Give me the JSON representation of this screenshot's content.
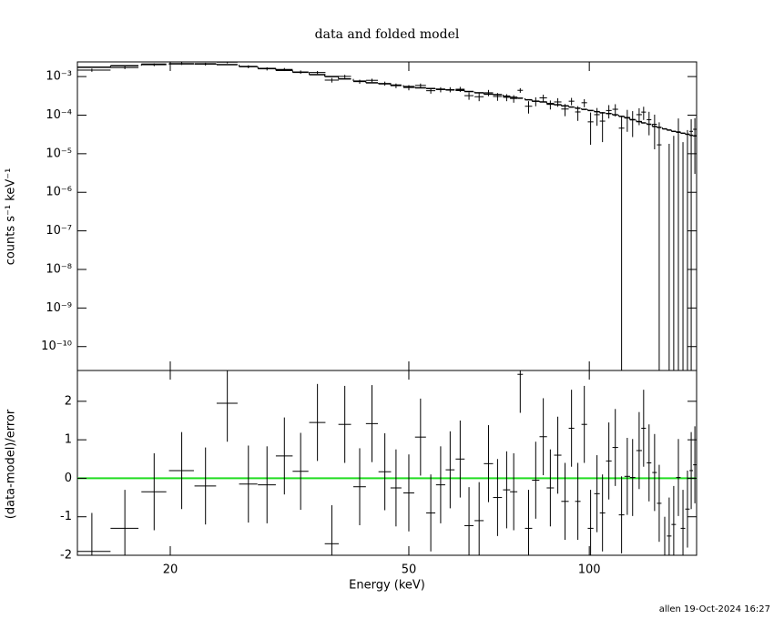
{
  "footer": "allen 19-Oct-2024 16:27",
  "chart_data": [
    {
      "type": "errorbar",
      "title": "data and folded model",
      "ylabel": "counts s⁻¹ keV⁻¹",
      "log_y": true,
      "color": "#000000",
      "model_color": "#000000",
      "ylim": [
        2.4e-11,
        0.0024
      ],
      "yticks": [
        {
          "value": 0.001,
          "label": "10⁻³"
        },
        {
          "value": 0.0001,
          "label": "10⁻⁴"
        },
        {
          "value": 1e-05,
          "label": "10⁻⁵"
        },
        {
          "value": 1e-06,
          "label": "10⁻⁶"
        },
        {
          "value": 1e-07,
          "label": "10⁻⁷"
        },
        {
          "value": 1e-08,
          "label": "10⁻⁸"
        },
        {
          "value": 1e-09,
          "label": "10⁻⁹"
        },
        {
          "value": 1e-10,
          "label": "10⁻¹⁰"
        }
      ],
      "values": [
        0.00147,
        0.00171,
        0.00203,
        0.00217,
        0.0021,
        0.00237,
        0.0018,
        0.00159,
        0.00153,
        0.00131,
        0.00128,
        0.00081,
        0.00101,
        0.00074,
        0.0008,
        0.00066,
        0.00058,
        0.00052,
        0.00059,
        0.00043,
        0.00046,
        0.00046,
        0.00047,
        0.00032,
        0.0003,
        0.00038,
        0.000305,
        0.00029,
        0.00027,
        0.00044,
        0.00017,
        0.00023,
        0.00028,
        0.00019,
        0.00022,
        0.000144,
        0.00023,
        0.000121,
        0.00021,
        6.7e-05,
        0.000103,
        7e-05,
        0.000132,
        0.000142,
        4.6e-05,
        8.7e-05,
        7.7e-05,
        0.000103,
        0.00012,
        7.6e-05,
        5.8e-05,
        1.7e-05,
        -5.2e-05,
        -2.7e-05,
        -1.6e-05,
        3.7e-05,
        -2.5e-05,
        -4e-06,
        3.8e-05,
        4.3e-05
      ],
      "errors": [
        0.00014,
        0.00015,
        0.00017,
        0.00017,
        0.00018,
        0.00017,
        0.00016,
        0.00015,
        0.00014,
        0.00013,
        0.00011,
        0.00011,
        0.0001,
        9e-05,
        8e-05,
        8e-05,
        8e-05,
        8e-05,
        7e-05,
        7e-05,
        7e-05,
        7e-05,
        7e-05,
        7e-05,
        7e-05,
        7e-05,
        7e-05,
        6e-05,
        6e-05,
        6e-05,
        6e-05,
        6e-05,
        6e-05,
        5e-05,
        5.5e-05,
        5e-05,
        5e-05,
        5e-05,
        5e-05,
        5e-05,
        5e-05,
        5e-05,
        5e-05,
        5e-05,
        5e-05,
        5e-05,
        5e-05,
        4.8e-05,
        4.5e-05,
        4.6e-05,
        4.5e-05,
        4.8e-05,
        4.8e-05,
        4.5e-05,
        4.5e-05,
        4.5e-05,
        4.5e-05,
        4.5e-05,
        4e-05,
        4e-05
      ],
      "model": [
        0.00174,
        0.00191,
        0.00209,
        0.00214,
        0.00214,
        0.00204,
        0.00182,
        0.00162,
        0.00145,
        0.00129,
        0.00112,
        0.001,
        0.00087,
        0.00076,
        0.00069,
        0.00065,
        0.0006,
        0.00055,
        0.00051,
        0.00049,
        0.00047,
        0.00045,
        0.00044,
        0.00041,
        0.00038,
        0.00035,
        0.00034,
        0.00031,
        0.00029,
        0.000275,
        0.00025,
        0.00023,
        0.00022,
        0.0002,
        0.000186,
        0.000174,
        0.000162,
        0.000151,
        0.000141,
        0.000132,
        0.000123,
        0.000115,
        0.00011,
        0.000102,
        9.3e-05,
        8.5e-05,
        7.6e-05,
        6.8e-05,
        6.3e-05,
        5.8e-05,
        5.1e-05,
        4.8e-05,
        4.4e-05,
        4.1e-05,
        3.8e-05,
        3.6e-05,
        3.4e-05,
        3.2e-05,
        3e-05,
        2.9e-05
      ]
    },
    {
      "type": "errorbar",
      "xlabel": "Energy (keV)",
      "ylabel": "(data-model)/error",
      "log_x": true,
      "color": "#000000",
      "reference_line": 0,
      "reference_color": "#22dd22",
      "xlim": [
        14,
        151
      ],
      "xticks": [
        20,
        50,
        100
      ],
      "ylim": [
        -2,
        2.8
      ],
      "yticks": [
        -2,
        -1,
        0,
        1,
        2
      ],
      "x": [
        14.8,
        16.8,
        18.8,
        20.9,
        22.9,
        24.9,
        27.0,
        29.0,
        31.0,
        33.0,
        35.2,
        37.2,
        39.1,
        41.4,
        43.4,
        45.6,
        47.6,
        50.0,
        52.3,
        54.4,
        56.5,
        58.6,
        60.9,
        63.0,
        65.5,
        67.9,
        70.3,
        72.8,
        74.8,
        76.7,
        79.2,
        81.4,
        83.8,
        86.1,
        88.6,
        91.1,
        93.4,
        95.7,
        98.1,
        100.5,
        103.0,
        105.2,
        107.8,
        110.5,
        113.2,
        115.7,
        118.1,
        121.1,
        123.2,
        125.8,
        128.5,
        130.8,
        133.6,
        135.9,
        138.3,
        140.8,
        143.3,
        145.8,
        147.9,
        150.0
      ],
      "xerr": [
        1.1,
        0.9,
        0.9,
        1.0,
        0.95,
        1.0,
        0.95,
        1.0,
        1.0,
        1.0,
        1.1,
        1.0,
        0.95,
        1.0,
        1.0,
        1.1,
        1.0,
        1.05,
        1.1,
        0.95,
        1.0,
        1.0,
        1.05,
        1.1,
        1.15,
        1.2,
        1.2,
        1.0,
        1.05,
        0.8,
        1.1,
        1.15,
        1.2,
        1.2,
        1.25,
        1.3,
        1.0,
        1.0,
        1.05,
        1.1,
        1.1,
        1.1,
        1.15,
        1.2,
        1.2,
        1.25,
        1.25,
        1.3,
        1.1,
        1.1,
        1.15,
        1.15,
        1.2,
        1.2,
        1.2,
        1.2,
        1.25,
        1.25,
        1.0,
        1.0
      ],
      "values": [
        -1.9,
        -1.3,
        -0.35,
        0.2,
        -0.2,
        1.95,
        -0.15,
        -0.17,
        0.58,
        0.18,
        1.45,
        -1.7,
        1.4,
        -0.22,
        1.42,
        0.17,
        -0.25,
        -0.38,
        1.07,
        -0.9,
        -0.17,
        0.22,
        0.5,
        -1.23,
        -1.1,
        0.38,
        -0.5,
        -0.3,
        -0.35,
        2.7,
        -1.3,
        -0.05,
        1.08,
        -0.25,
        0.6,
        -0.6,
        1.3,
        -0.6,
        1.4,
        -1.3,
        -0.4,
        -0.9,
        0.45,
        0.8,
        -0.95,
        0.05,
        0.02,
        0.72,
        1.3,
        0.4,
        0.15,
        -0.65,
        -2.0,
        -1.5,
        -1.2,
        0.02,
        -1.3,
        -0.8,
        0.2,
        0.35
      ],
      "errors": [
        1,
        1,
        1,
        1,
        1,
        1,
        1,
        1,
        1,
        1,
        1,
        1,
        1,
        1,
        1,
        1,
        1,
        1,
        1,
        1,
        1,
        1,
        1,
        1,
        1,
        1,
        1,
        1,
        1,
        1,
        1,
        1,
        1,
        1,
        1,
        1,
        1,
        1,
        1,
        1,
        1,
        1,
        1,
        1,
        1,
        1,
        1,
        1,
        1,
        1,
        1,
        1,
        1,
        1,
        1,
        1,
        1,
        1,
        1,
        1
      ]
    }
  ]
}
